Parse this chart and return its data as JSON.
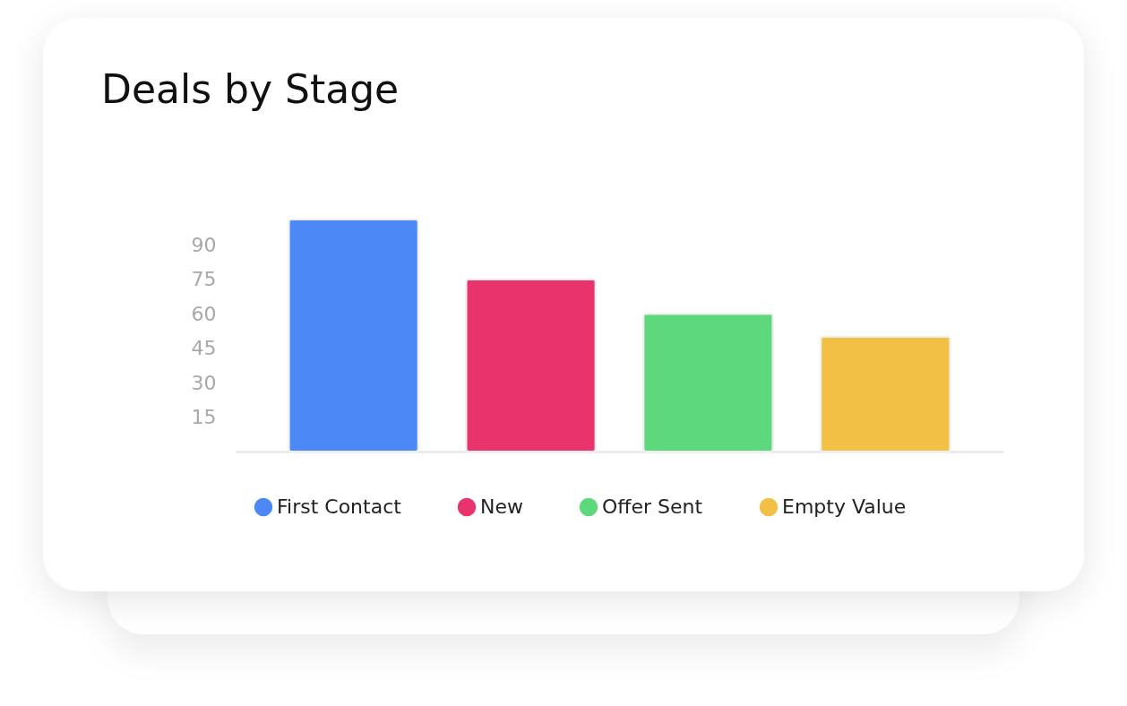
{
  "chart_data": {
    "type": "bar",
    "title": "Deals by Stage",
    "categories": [
      null,
      null,
      null,
      null
    ],
    "series": [
      {
        "name": "First Contact",
        "color": "#4d88f7",
        "values": [
          101,
          null,
          null,
          null
        ]
      },
      {
        "name": "New",
        "color": "#e9336d",
        "values": [
          null,
          75,
          null,
          null
        ]
      },
      {
        "name": "Offer Sent",
        "color": "#5dd87d",
        "values": [
          null,
          null,
          60,
          null
        ]
      },
      {
        "name": "Empty Value",
        "color": "#f2c045",
        "values": [
          null,
          null,
          null,
          50
        ]
      }
    ],
    "stacked": true,
    "ylim": [
      0,
      101
    ],
    "yticks": [
      15,
      30,
      45,
      60,
      75,
      90
    ],
    "grid": false,
    "legend": "bottom",
    "tick_labels": "y"
  }
}
